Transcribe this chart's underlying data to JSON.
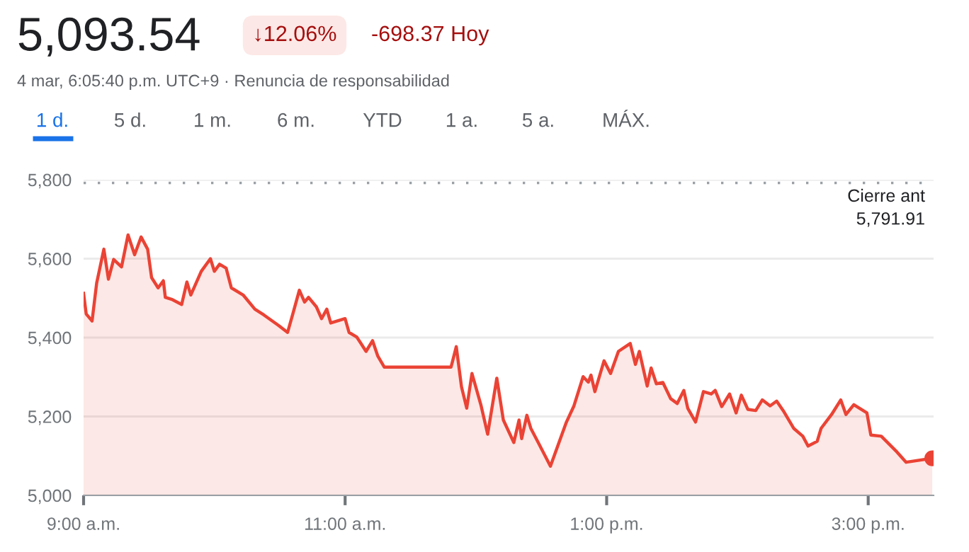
{
  "chart_data": {
    "type": "area",
    "title": "5,093.54",
    "subtitle": "4 mar, 6:05:40 p.m. UTC+9 · Renuncia de responsabilidad",
    "annotations": [
      "↓12.06%",
      "-698.37 Hoy",
      "1 d.",
      "5 d.",
      "1 m.",
      "6 m.",
      "YTD",
      "1 a.",
      "5 a.",
      "MÁX."
    ],
    "x": [
      9.0,
      9.02,
      9.065,
      9.1,
      9.155,
      9.19,
      9.23,
      9.29,
      9.34,
      9.39,
      9.44,
      9.49,
      9.52,
      9.57,
      9.61,
      9.625,
      9.68,
      9.75,
      9.79,
      9.82,
      9.9,
      9.97,
      10.0,
      10.04,
      10.09,
      10.13,
      10.22,
      10.31,
      10.38,
      10.49,
      10.56,
      10.6,
      10.65,
      10.69,
      10.72,
      10.78,
      10.82,
      10.86,
      10.89,
      11.0,
      11.03,
      11.09,
      11.16,
      11.21,
      11.25,
      11.3,
      11.81,
      11.85,
      11.89,
      11.93,
      11.97,
      12.04,
      12.09,
      12.16,
      12.21,
      12.29,
      12.33,
      12.35,
      12.39,
      12.42,
      12.48,
      12.57,
      12.64,
      12.69,
      12.75,
      12.82,
      12.86,
      12.88,
      12.91,
      12.98,
      13.03,
      13.09,
      13.18,
      13.22,
      13.25,
      13.31,
      13.34,
      13.38,
      13.43,
      13.49,
      13.54,
      13.59,
      13.62,
      13.68,
      13.74,
      13.8,
      13.83,
      13.88,
      13.94,
      13.99,
      14.03,
      14.08,
      14.14,
      14.19,
      14.25,
      14.3,
      14.35,
      14.43,
      14.5,
      14.54,
      14.61,
      14.64,
      14.72,
      14.79,
      14.83,
      14.89,
      14.99,
      15.02,
      15.1,
      15.22,
      15.29,
      15.49
    ],
    "series": [
      {
        "color": "#ea4335",
        "values": [
          5512,
          5460,
          5442,
          5538,
          5624,
          5548,
          5598,
          5579,
          5660,
          5610,
          5655,
          5624,
          5552,
          5526,
          5544,
          5502,
          5496,
          5484,
          5541,
          5508,
          5568,
          5600,
          5568,
          5586,
          5576,
          5526,
          5508,
          5472,
          5457,
          5431,
          5413,
          5460,
          5520,
          5490,
          5502,
          5478,
          5448,
          5472,
          5437,
          5448,
          5413,
          5401,
          5365,
          5392,
          5353,
          5325,
          5325,
          5377,
          5275,
          5221,
          5309,
          5227,
          5155,
          5297,
          5191,
          5134,
          5191,
          5144,
          5203,
          5170,
          5132,
          5074,
          5138,
          5184,
          5227,
          5301,
          5287,
          5305,
          5263,
          5341,
          5309,
          5365,
          5385,
          5332,
          5365,
          5277,
          5323,
          5283,
          5286,
          5245,
          5233,
          5266,
          5221,
          5186,
          5263,
          5257,
          5266,
          5225,
          5257,
          5209,
          5254,
          5218,
          5215,
          5242,
          5227,
          5239,
          5215,
          5170,
          5150,
          5125,
          5137,
          5170,
          5205,
          5242,
          5205,
          5230,
          5209,
          5153,
          5150,
          5110,
          5084,
          5094
        ]
      }
    ],
    "xlim": [
      9,
      15.5
    ],
    "xticks": [
      {
        "value": 9,
        "label": "9:00 a.m."
      },
      {
        "value": 11,
        "label": "11:00 a.m."
      },
      {
        "value": 13,
        "label": "1:00 p.m."
      },
      {
        "value": 15,
        "label": "3:00 p.m."
      }
    ],
    "ylim": [
      5000,
      5800
    ],
    "yticks": [
      {
        "value": 5000,
        "label": "5,000"
      },
      {
        "value": 5200,
        "label": "5,200"
      },
      {
        "value": 5400,
        "label": "5,400"
      },
      {
        "value": 5600,
        "label": "5,600"
      },
      {
        "value": 5800,
        "label": "5,800"
      }
    ],
    "grid": "y",
    "ref_lines": [
      {
        "axis": "y",
        "value": 5791.91,
        "label": "Cierre ant\n5,791.91",
        "color": "#9aa0a6",
        "line_style": "dotted"
      }
    ]
  }
}
